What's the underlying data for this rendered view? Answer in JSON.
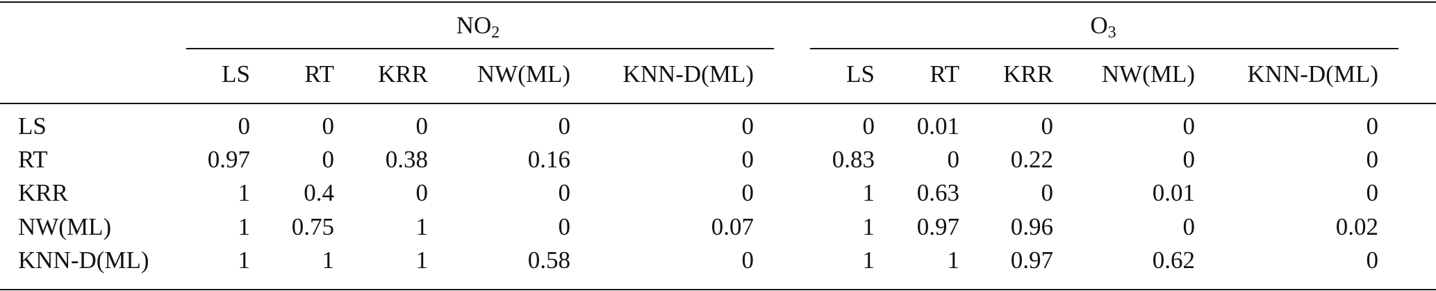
{
  "table": {
    "groups": [
      {
        "label": "NO",
        "sub": "2"
      },
      {
        "label": "O",
        "sub": "3"
      }
    ],
    "columns": [
      "LS",
      "RT",
      "KRR",
      "NW(ML)",
      "KNN-D(ML)",
      "LS",
      "RT",
      "KRR",
      "NW(ML)",
      "KNN-D(ML)"
    ],
    "rows": [
      {
        "label": "LS",
        "values": [
          0,
          0,
          0,
          0,
          0,
          0,
          0.01,
          0,
          0,
          0
        ]
      },
      {
        "label": "RT",
        "values": [
          0.97,
          0,
          0.38,
          0.16,
          0,
          0.83,
          0,
          0.22,
          0,
          0
        ]
      },
      {
        "label": "KRR",
        "values": [
          1,
          0.4,
          0,
          0,
          0,
          1,
          0.63,
          0,
          0.01,
          0
        ]
      },
      {
        "label": "NW(ML)",
        "values": [
          1,
          0.75,
          1,
          0,
          0.07,
          1,
          0.97,
          0.96,
          0,
          0.02
        ]
      },
      {
        "label": "KNN-D(ML)",
        "values": [
          1,
          1,
          1,
          0.58,
          0,
          1,
          1,
          0.97,
          0.62,
          0
        ]
      }
    ]
  }
}
